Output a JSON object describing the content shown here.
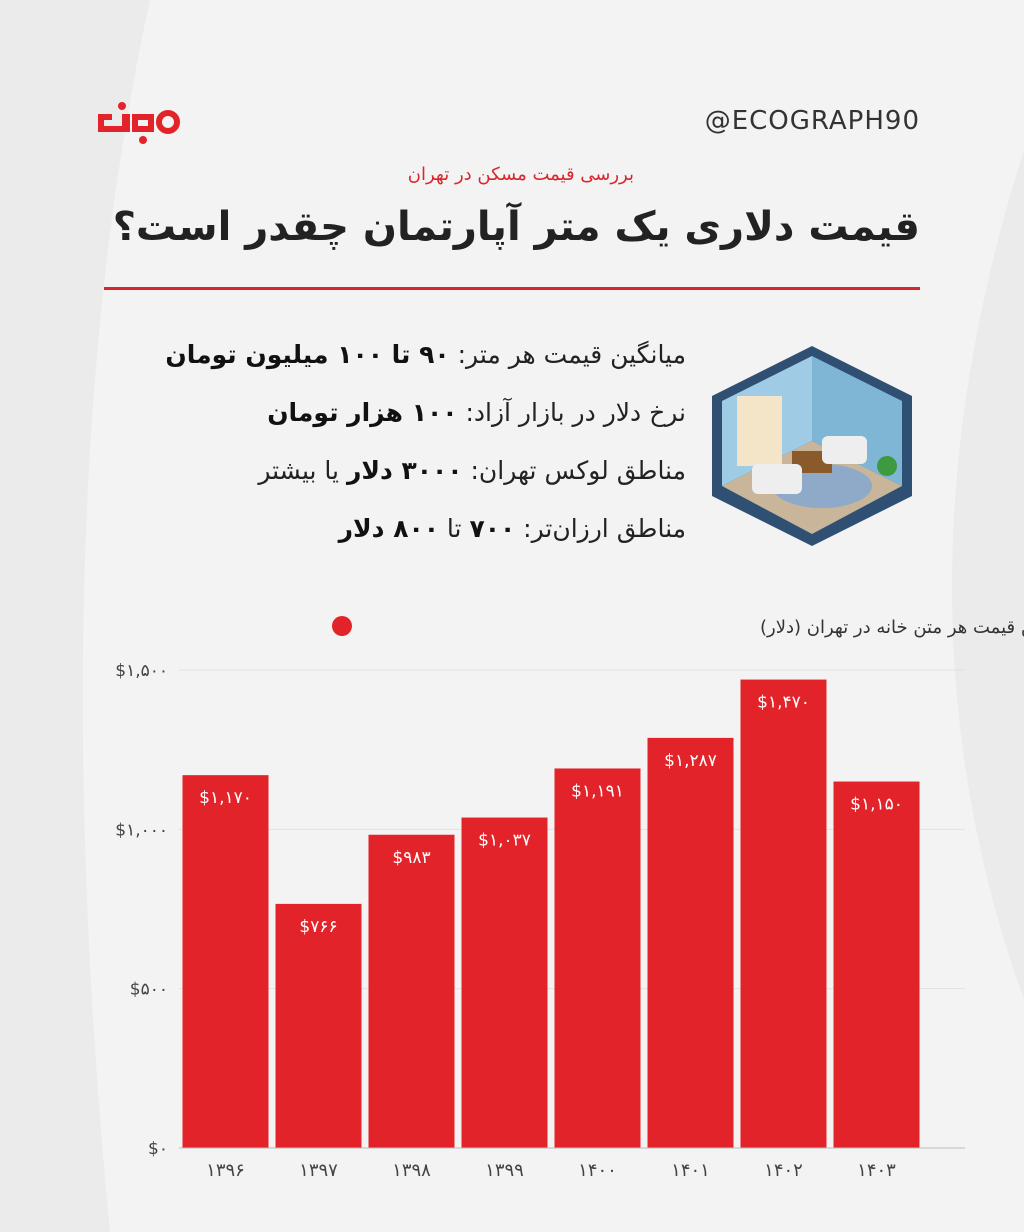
{
  "header": {
    "handle": "@ECOGRAPH90",
    "subtitle": "بررسی قیمت مسکن در تهران",
    "title": "قیمت دلاری یک متر آپارتمان چقدر است؟"
  },
  "info": {
    "lines": [
      [
        {
          "text": "میانگین قیمت هر متر: ",
          "bold": false
        },
        {
          "text": "۹۰",
          "bold": true
        },
        {
          "text": " تا ",
          "bold": true
        },
        {
          "text": "۱۰۰",
          "bold": true
        },
        {
          "text": " میلیون تومان",
          "bold": true
        }
      ],
      [
        {
          "text": "نرخ دلار در بازار آزاد: ",
          "bold": false
        },
        {
          "text": "۱۰۰",
          "bold": true
        },
        {
          "text": " هزار تومان",
          "bold": true
        }
      ],
      [
        {
          "text": "مناطق لوکس تهران: ",
          "bold": false
        },
        {
          "text": "۳۰۰۰",
          "bold": true
        },
        {
          "text": " دلار",
          "bold": true
        },
        {
          "text": " یا بیشتر",
          "bold": false
        }
      ],
      [
        {
          "text": "مناطق ارزان‌تر: ",
          "bold": false
        },
        {
          "text": "۷۰۰",
          "bold": true
        },
        {
          "text": " تا ",
          "bold": false
        },
        {
          "text": "۸۰۰",
          "bold": true
        },
        {
          "text": " دلار",
          "bold": true
        }
      ]
    ]
  },
  "chart_data": {
    "type": "bar",
    "categories": [
      "۱۳۹۶",
      "۱۳۹۷",
      "۱۳۹۸",
      "۱۳۹۹",
      "۱۴۰۰",
      "۱۴۰۱",
      "۱۴۰۲",
      "۱۴۰۳"
    ],
    "series": [
      {
        "name": "میانگین قیمت هر متن خانه در تهران (دلار)",
        "color": "#e3232a",
        "values": [
          1170,
          766,
          983,
          1037,
          1191,
          1287,
          1470,
          1150
        ],
        "value_labels": [
          "$۱,۱۷۰",
          "$۷۶۶",
          "$۹۸۳",
          "$۱,۰۳۷",
          "$۱,۱۹۱",
          "$۱,۲۸۷",
          "$۱,۴۷۰",
          "$۱,۱۵۰"
        ]
      }
    ],
    "ylim": [
      0,
      1500
    ],
    "yticks": [
      {
        "value": 0,
        "label": "$۰"
      },
      {
        "value": 500,
        "label": "$۵۰۰"
      },
      {
        "value": 1000,
        "label": "$۱,۰۰۰"
      },
      {
        "value": 1500,
        "label": "$۱,۵۰۰"
      }
    ],
    "grid": true,
    "legend": "top-right"
  }
}
